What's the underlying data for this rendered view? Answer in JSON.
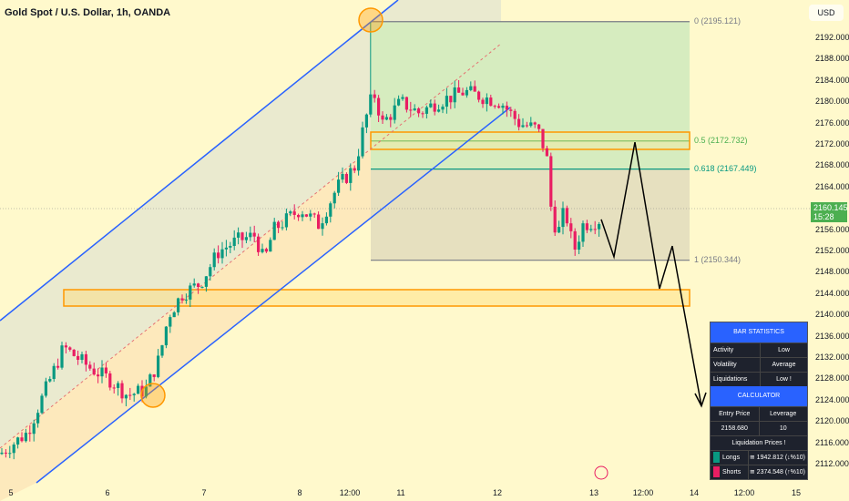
{
  "header": {
    "title": "Gold Spot / U.S. Dollar, 1h, OANDA",
    "currency": "USD"
  },
  "price_axis": {
    "ticks": [
      "2192.000",
      "2188.000",
      "2184.000",
      "2180.000",
      "2176.000",
      "2172.000",
      "2168.000",
      "2164.000",
      "2156.000",
      "2152.000",
      "2148.000",
      "2144.000",
      "2140.000",
      "2136.000",
      "2132.000",
      "2128.000",
      "2124.000",
      "2120.000",
      "2116.000",
      "2112.000"
    ],
    "last_price": "2160.145",
    "countdown": "15:28"
  },
  "time_axis": {
    "ticks": [
      "5",
      "6",
      "7",
      "8",
      "12:00",
      "11",
      "12",
      "13",
      "12:00",
      "14",
      "12:00",
      "15"
    ]
  },
  "fib": {
    "levels": [
      {
        "label": "0 (2195.121)",
        "price": 2195.121,
        "color": "#787b86"
      },
      {
        "label": "0.5 (2172.732)",
        "price": 2172.732,
        "color": "#4caf50"
      },
      {
        "label": "0.618 (2167.449)",
        "price": 2167.449,
        "color": "#089981"
      },
      {
        "label": "1 (2150.344)",
        "price": 2150.344,
        "color": "#787b86"
      }
    ]
  },
  "colors": {
    "up": "#089981",
    "down": "#e91e63",
    "channel": "#2962ff",
    "zone": "#ff9800",
    "background": "#fff9cc"
  },
  "stats": {
    "title": "BAR STATISTICS",
    "rows": [
      [
        "Activity",
        "Low"
      ],
      [
        "Volatility",
        "Average"
      ],
      [
        "Liquidations",
        "Low !"
      ]
    ],
    "calc_title": "CALCULATOR",
    "calc_headers": [
      "Entry Price",
      "Leverage"
    ],
    "calc_values": [
      "2158.680",
      "10"
    ],
    "liq_title": "Liquidation Prices !",
    "longs": {
      "label": "Longs",
      "value": "≅ 1942.812 (↓%10)"
    },
    "shorts": {
      "label": "Shorts",
      "value": "≅ 2374.548 (↑%10)"
    }
  },
  "chart_data": {
    "type": "candlestick",
    "title": "Gold Spot / U.S. Dollar, 1h, OANDA",
    "ylim": [
      2110,
      2196
    ],
    "approx_close_path": [
      [
        "5",
        2114
      ],
      [
        "5",
        2118
      ],
      [
        "5",
        2126
      ],
      [
        "5",
        2134
      ],
      [
        "6",
        2130
      ],
      [
        "6",
        2128
      ],
      [
        "6",
        2125
      ],
      [
        "6",
        2126
      ],
      [
        "7",
        2132
      ],
      [
        "7",
        2140
      ],
      [
        "7",
        2144
      ],
      [
        "7",
        2146
      ],
      [
        "7",
        2152
      ],
      [
        "8",
        2154
      ],
      [
        "8",
        2155
      ],
      [
        "8",
        2150
      ],
      [
        "8",
        2156
      ],
      [
        "8",
        2160
      ],
      [
        "8",
        2157
      ],
      [
        "8",
        2164
      ],
      [
        "8",
        2168
      ],
      [
        "8",
        2176
      ],
      [
        "11",
        2182
      ],
      [
        "11",
        2176
      ],
      [
        "11",
        2180
      ],
      [
        "11",
        2178
      ],
      [
        "11",
        2180
      ],
      [
        "11",
        2182
      ],
      [
        "12",
        2181
      ],
      [
        "12",
        2180
      ],
      [
        "12",
        2176
      ],
      [
        "12",
        2175
      ],
      [
        "12",
        2170
      ],
      [
        "12",
        2160
      ],
      [
        "12",
        2155
      ],
      [
        "13",
        2160
      ],
      [
        "13",
        2152
      ],
      [
        "13",
        2157
      ],
      [
        "13",
        2158
      ]
    ],
    "projection": [
      2158,
      2151,
      2172.5,
      2145,
      2153,
      2123
    ]
  }
}
